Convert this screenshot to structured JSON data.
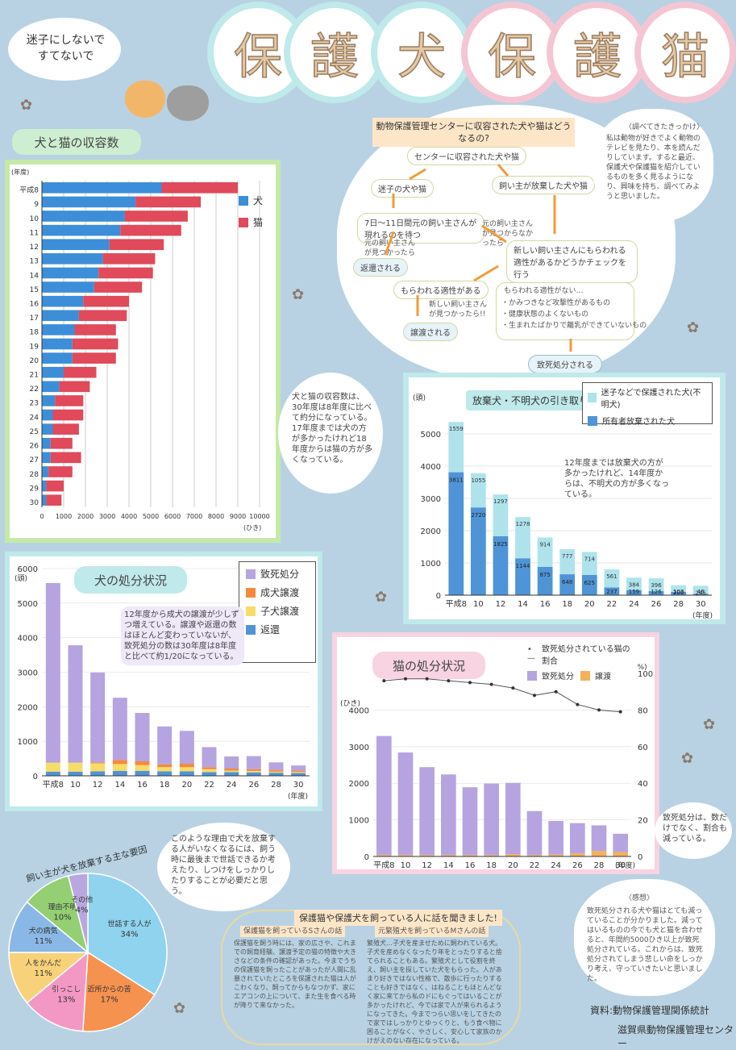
{
  "header": {
    "slogan": "迷子にしないで すてないで",
    "title_chars": [
      "保",
      "護",
      "犬",
      "保",
      "護",
      "猫"
    ]
  },
  "intake": {
    "title": "犬と猫の収容数",
    "legend": {
      "dog": "犬",
      "cat": "猫"
    },
    "unit": "(ひき)",
    "year_label": "(年度)",
    "year_prefix": "平成",
    "note": "犬と猫の収容数は、30年度は8年度に比べて約分になっている。17年度までは犬の方が多かったけれど18年度からは猫の方が多くなっている。"
  },
  "flow": {
    "heading": "動物保護管理センターに収容された犬や猫はどうなるの?",
    "start": "センターに収容された犬や猫",
    "lost": "迷子の犬や猫",
    "abandoned": "飼い主が放棄した犬や猫",
    "wait": "7日〜11日間元の飼い主さんが現れるのを待つ",
    "owner_found": "元の飼い主さんが見つかったら",
    "owner_not_found": "元の飼い主さんが見つからなかったら",
    "returned": "返還される",
    "new_owner": "新しい飼い主さんにもらわれる適性があるかどうかチェックを行う",
    "suitable": "もらわれる適性がある",
    "found_new": "新しい飼い主さんが見つかったら!!",
    "transferred": "譲渡される",
    "not_suitable": "もらわれる適性がない…",
    "reasons": [
      "・かみつきなど攻撃性があるもの",
      "・健康状態のよくないもの",
      "・生まれたばかりで離乳ができていないもの"
    ],
    "euthanized": "致死処分される"
  },
  "motive": {
    "title": "〈調べてきたきっかけ〉",
    "text": "私は動物が好きでよく動物のテレビを見たり、本を読んだりしています。すると最近、保護犬や保護猫を紹介しているものを多く見るようになり、興味を持ち、調べてみようと思いました。"
  },
  "pickup": {
    "title": "放棄犬・不明犬の引き取り数",
    "legend": {
      "unknown": "迷子などで保護された犬(不明犬)",
      "owner": "所有者放棄された犬"
    },
    "unit": "(頭)",
    "year_label": "(年度)",
    "year_prefix": "平成",
    "note": "12年度までは放棄犬の方が多かったけれど、14年度からは、不明犬の方が多くなっている。"
  },
  "dog_disposal": {
    "title": "犬の処分状況",
    "unit": "(頭)",
    "year_label": "(年度)",
    "year_prefix": "平成",
    "legend": [
      "致死処分",
      "成犬譲渡",
      "子犬譲渡",
      "返還"
    ],
    "note": "12年度から成犬の譲渡が少しずつ増えている。譲渡や返還の数はほとんど変わっていないが、致死処分の数は30年度は8年度と比べて約1/20になっている。"
  },
  "cat_disposal": {
    "title": "猫の処分状況",
    "unit": "(ひき)",
    "pct_unit": "(%)",
    "year_label": "(年度)",
    "year_prefix": "平成",
    "legend": {
      "line": "致死処分されている猫の割合",
      "bar1": "致死処分",
      "bar2": "譲渡"
    },
    "note": "致死処分は、数だけでなく、割合も減っている。"
  },
  "pie": {
    "title": "飼い主が犬を放棄する主な要因",
    "slices": [
      {
        "label": "世話する人がいない",
        "pct": "34%",
        "value": 34,
        "color": "#8fd3ef"
      },
      {
        "label": "近所からの苦情(鳴き声等)",
        "pct": "17%",
        "value": 17,
        "color": "#f5924f"
      },
      {
        "label": "引っこし",
        "pct": "13%",
        "value": 13,
        "color": "#f398c4"
      },
      {
        "label": "人をかんだ",
        "pct": "11%",
        "value": 11,
        "color": "#f7d27a"
      },
      {
        "label": "犬の病気",
        "pct": "11%",
        "value": 11,
        "color": "#8ab8e6"
      },
      {
        "label": "理由不明",
        "pct": "10%",
        "value": 10,
        "color": "#94cf73"
      },
      {
        "label": "その他",
        "pct": "4%",
        "value": 4,
        "color": "#b9a8e0"
      }
    ]
  },
  "reason_note": "このような理由で犬を放棄する人がいなくなるには、飼う時に最後まで世話できるか考えたり、しつけをしっかりしたりすることが必要だと思う。",
  "interview": {
    "title": "保護猫や保護犬を飼っている人に話を聞きました!",
    "s_title": "保護猫を飼っているSさんの話",
    "s_text": "保護猫を飼う時には、家の広さや、これまでの飼育経験、譲渡予定の猫の特徴や大きさなどの条件の確認があった。今までうちの保護猫を飼ったことがあったが人間に乱暴されていたところを保護された猫は人がこわくなり、飼ってからもなつかず、家にエアコンの上について、また生を食べる時が降りて来なかった。",
    "m_title": "元繁殖犬を飼っているMさんの話",
    "m_text": "繁殖犬…子犬を産ませために飼われている犬。子犬を産めなくなったり年をとったりすると捨てられることもある。繁殖犬として役割を終え、飼い主を探していた犬をもらった。人があまり好きではない性格で、散歩に行ったりすることも好きではなく、はねることもほとんどなく家に来てから私のドにもぐってはいることが多かったけれど、今では家で人が来られるようになってきた。今までつらい思いをしてきたので家ではしっかりとゆっくりと、もう食べ物に困ることがなく、やさしく、安心して家族のかけがえのない存在になっている。"
  },
  "impression": {
    "title": "〈感想〉",
    "text": "致死処分される犬や猫はとても減っていることが分かりました。減ってはいるものの今でも犬と猫を合わせると、年間約5000ひき以上が致死処分されている。これからは、致死処分されてしまう悲しい命をしっかり考え、守っていきたいと思いました。"
  },
  "source": {
    "line1": "資料:動物保護管理関係統計",
    "line2": "滋賀県動物保護管理センター"
  },
  "chart_data": [
    {
      "type": "bar",
      "id": "intake",
      "title": "犬と猫の収容数",
      "categories": [
        "8",
        "9",
        "10",
        "11",
        "12",
        "13",
        "14",
        "15",
        "16",
        "17",
        "18",
        "19",
        "20",
        "21",
        "22",
        "23",
        "24",
        "25",
        "26",
        "27",
        "28",
        "29",
        "30"
      ],
      "series": [
        {
          "name": "犬",
          "values": [
            5500,
            4300,
            3800,
            3600,
            3100,
            2800,
            2600,
            2400,
            1900,
            1700,
            1500,
            1400,
            1400,
            1000,
            800,
            600,
            500,
            500,
            400,
            400,
            300,
            200,
            200
          ]
        },
        {
          "name": "猫",
          "values": [
            3500,
            3000,
            2900,
            2800,
            2500,
            2400,
            2500,
            2200,
            2100,
            2200,
            1900,
            2100,
            2000,
            1500,
            1400,
            1300,
            1400,
            1200,
            1000,
            1400,
            1100,
            800,
            700
          ]
        }
      ],
      "xlabel": "(ひき)",
      "ylabel": "(年度)",
      "xlim": [
        0,
        10000
      ]
    },
    {
      "type": "bar",
      "id": "pickup",
      "title": "放棄犬・不明犬の引き取り数",
      "categories": [
        "8",
        "10",
        "12",
        "14",
        "16",
        "18",
        "20",
        "22",
        "24",
        "26",
        "28",
        "30"
      ],
      "series": [
        {
          "name": "迷子などで保護された犬(不明犬)",
          "values": [
            1559,
            1055,
            1297,
            1278,
            914,
            777,
            714,
            561,
            384,
            396,
            200,
            245
          ]
        },
        {
          "name": "所有者放棄された犬",
          "values": [
            3811,
            2720,
            1825,
            1144,
            875,
            648,
            625,
            237,
            159,
            126,
            103,
            46
          ]
        }
      ],
      "ylabel": "(頭)",
      "ylim": [
        0,
        6000
      ]
    },
    {
      "type": "bar",
      "id": "dog_disposal",
      "title": "犬の処分状況",
      "categories": [
        "8",
        "10",
        "12",
        "14",
        "16",
        "18",
        "20",
        "22",
        "24",
        "26",
        "28",
        "30"
      ],
      "series": [
        {
          "name": "致死処分",
          "values": [
            5200,
            3400,
            2600,
            1800,
            1400,
            1100,
            950,
            580,
            350,
            380,
            220,
            150
          ]
        },
        {
          "name": "成犬譲渡",
          "values": [
            0,
            0,
            30,
            120,
            110,
            80,
            100,
            60,
            60,
            50,
            50,
            40
          ]
        },
        {
          "name": "子犬譲渡",
          "values": [
            260,
            260,
            230,
            200,
            170,
            120,
            120,
            80,
            40,
            40,
            30,
            30
          ]
        },
        {
          "name": "返還",
          "values": [
            120,
            120,
            130,
            140,
            140,
            130,
            130,
            110,
            110,
            100,
            90,
            80
          ]
        }
      ],
      "ylabel": "(頭)",
      "ylim": [
        0,
        6000
      ]
    },
    {
      "type": "bar",
      "id": "cat_disposal",
      "title": "猫の処分状況",
      "categories": [
        "8",
        "10",
        "12",
        "14",
        "16",
        "18",
        "20",
        "22",
        "24",
        "26",
        "28",
        "30"
      ],
      "series": [
        {
          "name": "致死処分",
          "values": [
            3250,
            2800,
            2400,
            2200,
            1850,
            1950,
            1950,
            1200,
            920,
            830,
            700,
            500
          ]
        },
        {
          "name": "譲渡",
          "values": [
            40,
            40,
            40,
            40,
            40,
            40,
            60,
            40,
            50,
            80,
            150,
            120
          ]
        },
        {
          "name": "致死処分されている猫の割合",
          "values": [
            96,
            97,
            97,
            96,
            95,
            94,
            92,
            88,
            90,
            83,
            80,
            79
          ]
        }
      ],
      "ylabel": "(ひき)",
      "ylim": [
        0,
        5000
      ],
      "y2lim": [
        0,
        100
      ]
    },
    {
      "type": "pie",
      "id": "pie",
      "title": "飼い主が犬を放棄する主な要因",
      "categories": [
        "世話する人がいない",
        "近所からの苦情(鳴き声等)",
        "引っこし",
        "人をかんだ",
        "犬の病気",
        "理由不明",
        "その他"
      ],
      "values": [
        34,
        17,
        13,
        11,
        11,
        10,
        4
      ]
    }
  ]
}
